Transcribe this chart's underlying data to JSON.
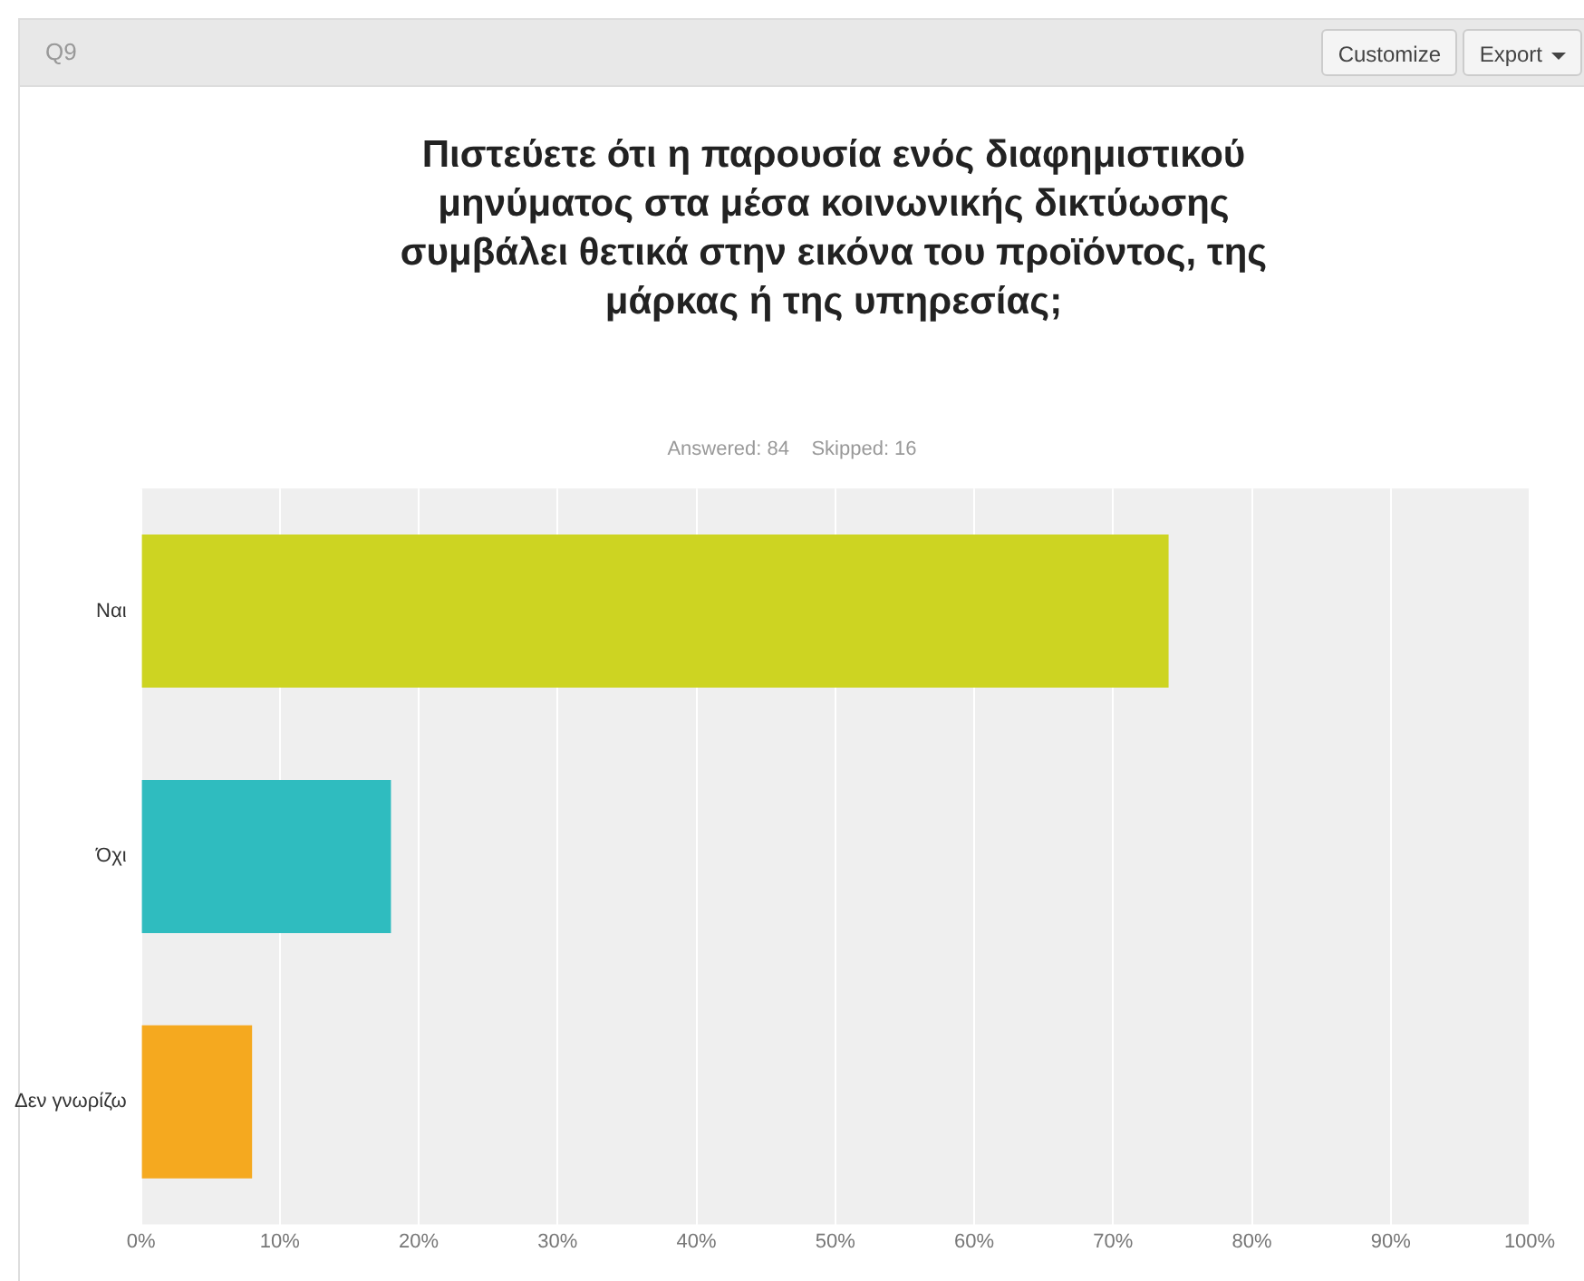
{
  "chart_data": {
    "type": "bar",
    "orientation": "horizontal",
    "title": "Πιστεύετε ότι η παρουσία ενός διαφημιστικού μηνύματος στα μέσα κοινωνικής δικτύωσης συμβάλει θετικά στην εικόνα του προϊόντος, της μάρκας ή της υπηρεσίας;",
    "subtitle": "Answered: 84    Skipped: 16",
    "annotations": [
      "Q9",
      "Customize",
      "Export"
    ],
    "categories": [
      "Ναι",
      "Όχι",
      "Δεν γνωρίζω"
    ],
    "values": [
      74,
      18,
      8
    ],
    "colors": [
      "#cdd422",
      "#2fbcbf",
      "#f5a91f"
    ],
    "xlim": [
      0,
      100
    ],
    "xticks": [
      {
        "value": 0,
        "label": "0%"
      },
      {
        "value": 10,
        "label": "10%"
      },
      {
        "value": 20,
        "label": "20%"
      },
      {
        "value": 30,
        "label": "30%"
      },
      {
        "value": 40,
        "label": "40%"
      },
      {
        "value": 50,
        "label": "50%"
      },
      {
        "value": 60,
        "label": "60%"
      },
      {
        "value": 70,
        "label": "70%"
      },
      {
        "value": 80,
        "label": "80%"
      },
      {
        "value": 90,
        "label": "90%"
      },
      {
        "value": 100,
        "label": "100%"
      }
    ],
    "grid": "x",
    "legend": false
  }
}
